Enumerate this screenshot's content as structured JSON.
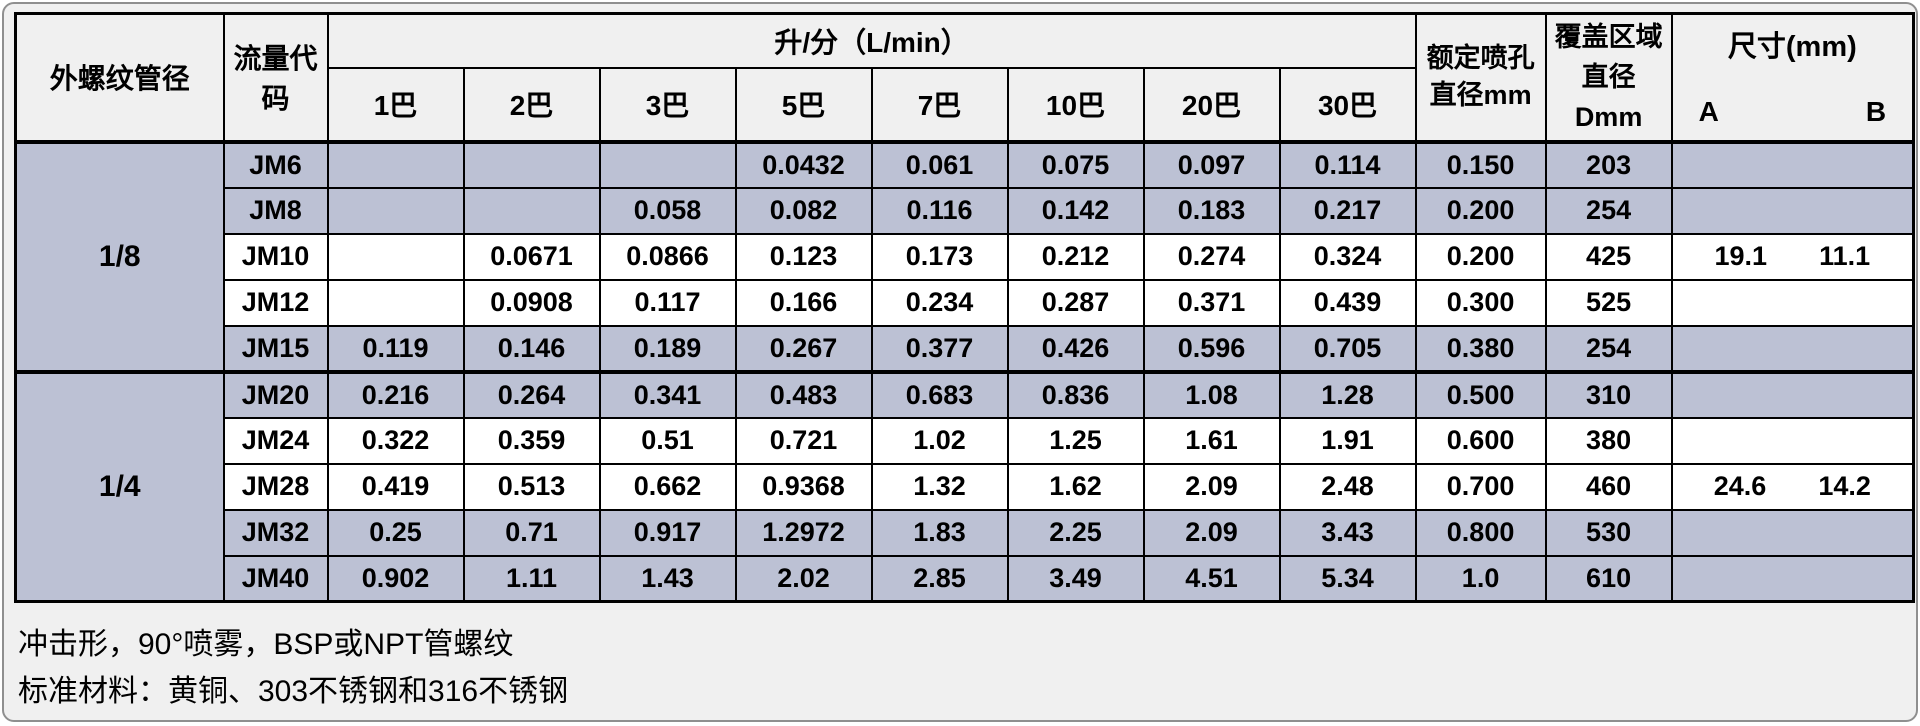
{
  "colors": {
    "page_background": "#f0f0f0",
    "header_background": "#f0f0f0",
    "shaded_row": "#bcc1d4",
    "plain_row": "#ffffff",
    "grid_border": "#000000",
    "outer_frame": "#8f8f8f"
  },
  "table": {
    "col_headers": {
      "pipe_diameter": "外螺纹管径",
      "flow_code": "流量代码",
      "flow_group": "升/分（L/min）",
      "pressure_columns": [
        "1巴",
        "2巴",
        "3巴",
        "5巴",
        "7巴",
        "10巴",
        "20巴",
        "30巴"
      ],
      "orifice_line1": "额定喷孔",
      "orifice_line2": "直径mm",
      "coverage_line1": "覆盖区域",
      "coverage_line2": "直径",
      "coverage_line3": "Dmm",
      "dimensions_title": "尺寸(mm)",
      "dim_a_label": "A",
      "dim_b_label": "B"
    },
    "groups": [
      {
        "pipe_diameter": "1/8",
        "rows": [
          {
            "code": "JM6",
            "shaded": true,
            "flows": [
              "",
              "",
              "",
              "0.0432",
              "0.061",
              "0.075",
              "0.097",
              "0.114"
            ],
            "orifice": "0.150",
            "coverage": "203",
            "dim_a": "",
            "dim_b": ""
          },
          {
            "code": "JM8",
            "shaded": true,
            "flows": [
              "",
              "",
              "0.058",
              "0.082",
              "0.116",
              "0.142",
              "0.183",
              "0.217"
            ],
            "orifice": "0.200",
            "coverage": "254",
            "dim_a": "",
            "dim_b": ""
          },
          {
            "code": "JM10",
            "shaded": false,
            "flows": [
              "",
              "0.0671",
              "0.0866",
              "0.123",
              "0.173",
              "0.212",
              "0.274",
              "0.324"
            ],
            "orifice": "0.200",
            "coverage": "425",
            "dim_a": "19.1",
            "dim_b": "11.1"
          },
          {
            "code": "JM12",
            "shaded": false,
            "flows": [
              "",
              "0.0908",
              "0.117",
              "0.166",
              "0.234",
              "0.287",
              "0.371",
              "0.439"
            ],
            "orifice": "0.300",
            "coverage": "525",
            "dim_a": "",
            "dim_b": ""
          },
          {
            "code": "JM15",
            "shaded": true,
            "flows": [
              "0.119",
              "0.146",
              "0.189",
              "0.267",
              "0.377",
              "0.426",
              "0.596",
              "0.705"
            ],
            "orifice": "0.380",
            "coverage": "254",
            "dim_a": "",
            "dim_b": ""
          }
        ]
      },
      {
        "pipe_diameter": "1/4",
        "rows": [
          {
            "code": "JM20",
            "shaded": true,
            "flows": [
              "0.216",
              "0.264",
              "0.341",
              "0.483",
              "0.683",
              "0.836",
              "1.08",
              "1.28"
            ],
            "orifice": "0.500",
            "coverage": "310",
            "dim_a": "",
            "dim_b": ""
          },
          {
            "code": "JM24",
            "shaded": false,
            "flows": [
              "0.322",
              "0.359",
              "0.51",
              "0.721",
              "1.02",
              "1.25",
              "1.61",
              "1.91"
            ],
            "orifice": "0.600",
            "coverage": "380",
            "dim_a": "",
            "dim_b": ""
          },
          {
            "code": "JM28",
            "shaded": false,
            "flows": [
              "0.419",
              "0.513",
              "0.662",
              "0.9368",
              "1.32",
              "1.62",
              "2.09",
              "2.48"
            ],
            "orifice": "0.700",
            "coverage": "460",
            "dim_a": "24.6",
            "dim_b": "14.2"
          },
          {
            "code": "JM32",
            "shaded": true,
            "flows": [
              "0.25",
              "0.71",
              "0.917",
              "1.2972",
              "1.83",
              "2.25",
              "2.09",
              "3.43"
            ],
            "orifice": "0.800",
            "coverage": "530",
            "dim_a": "",
            "dim_b": ""
          },
          {
            "code": "JM40",
            "shaded": true,
            "flows": [
              "0.902",
              "1.11",
              "1.43",
              "2.02",
              "2.85",
              "3.49",
              "4.51",
              "5.34"
            ],
            "orifice": "1.0",
            "coverage": "610",
            "dim_a": "",
            "dim_b": ""
          }
        ]
      }
    ]
  },
  "footer": {
    "line1": "冲击形，90°喷雾，BSP或NPT管螺纹",
    "line2": "标准材料：黄铜、303不锈钢和316不锈钢"
  }
}
